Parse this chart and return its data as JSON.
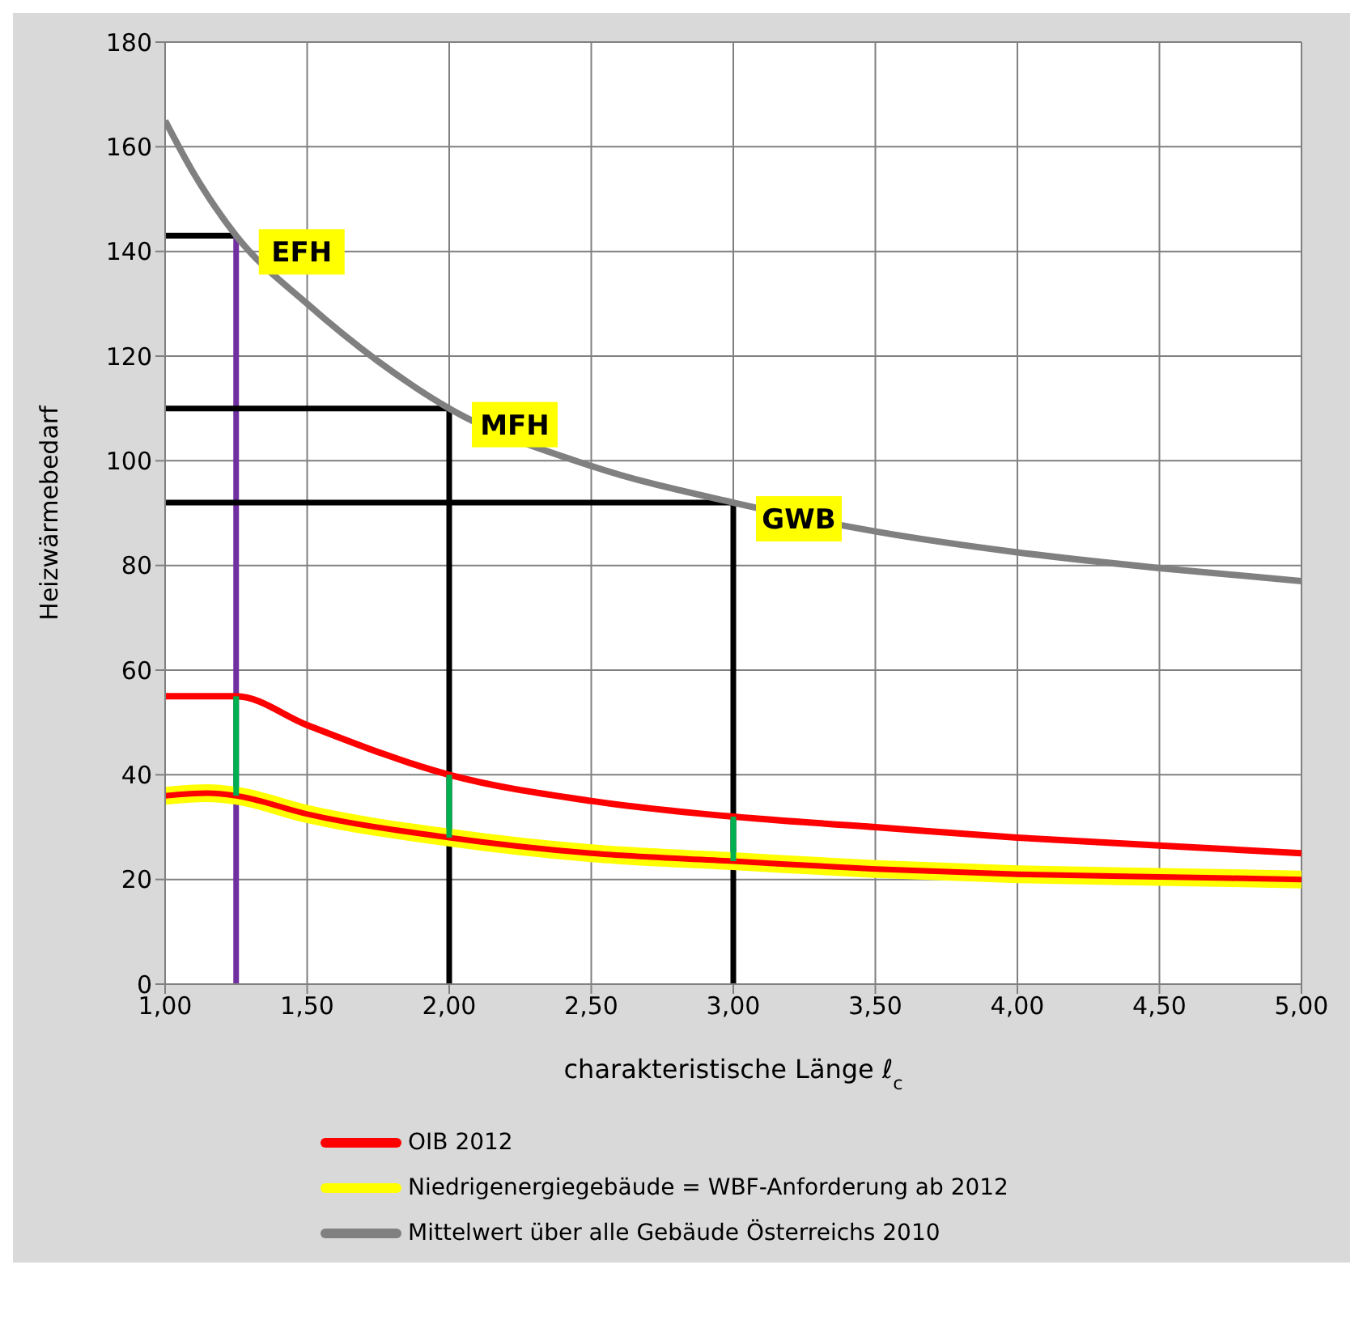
{
  "chart_data": {
    "type": "line",
    "ylabel": "Heizwärmebedarf",
    "xlabel": "charakteristische Länge ℓ$_{c}$",
    "xlim": [
      1,
      5
    ],
    "xticks": [
      {
        "value": 1,
        "label": "1,00"
      },
      {
        "value": 1.5,
        "label": "1,50"
      },
      {
        "value": 2,
        "label": "2,00"
      },
      {
        "value": 2.5,
        "label": "2,50"
      },
      {
        "value": 3,
        "label": "3,00"
      },
      {
        "value": 3.5,
        "label": "3,50"
      },
      {
        "value": 4,
        "label": "4,00"
      },
      {
        "value": 4.5,
        "label": "4,50"
      },
      {
        "value": 5,
        "label": "5,00"
      }
    ],
    "ylim": [
      0,
      180
    ],
    "yticks": [
      0,
      20,
      40,
      60,
      80,
      100,
      120,
      140,
      160,
      180
    ],
    "grid": true,
    "legend": "bottom",
    "series": [
      {
        "color": "#000000",
        "x": [
          1,
          1.25
        ],
        "values": [
          143,
          143
        ]
      },
      {
        "color": "#7030a0",
        "x": [
          1.25,
          1.25
        ],
        "values": [
          143,
          0
        ]
      },
      {
        "color": "#000000",
        "x": [
          1,
          2,
          2
        ],
        "values": [
          110,
          110,
          0
        ]
      },
      {
        "color": "#000000",
        "x": [
          1,
          3,
          3
        ],
        "values": [
          92,
          92,
          0
        ]
      },
      {
        "name": "OIB 2012",
        "color": "#ff0000",
        "x": [
          1,
          1.25,
          1.5,
          2,
          2.5,
          3,
          3.5,
          4,
          4.5,
          5
        ],
        "values": [
          55,
          55,
          49.5,
          40,
          35,
          32,
          30,
          28,
          26.5,
          25
        ]
      },
      {
        "name": "Niedrigenergiegebäude = WBF-Anforderung ab 2012",
        "color": "#ffff00",
        "x": [
          1,
          1.15,
          1.25,
          1.5,
          2,
          2.5,
          3,
          3.5,
          4,
          4.5,
          5
        ],
        "values": [
          36,
          36.5,
          36,
          32.5,
          28,
          25,
          23.5,
          22,
          21,
          20.5,
          20
        ]
      },
      {
        "color": "#ff0000",
        "x": [
          1,
          1.15,
          1.25,
          1.5,
          2,
          2.5,
          3,
          3.5,
          4,
          4.5,
          5
        ],
        "values": [
          36,
          36.5,
          36,
          32.5,
          28,
          25,
          23.5,
          22,
          21,
          20.5,
          20
        ]
      },
      {
        "name": "Mittelwert über alle Gebäude Österreichs 2010",
        "color": "#808080",
        "x": [
          1,
          1.1,
          1.25,
          1.5,
          1.75,
          2,
          2.5,
          3,
          3.5,
          4,
          4.5,
          5
        ],
        "values": [
          165,
          155,
          143,
          130,
          119,
          110,
          99,
          92,
          86.5,
          82.5,
          79.5,
          77
        ]
      },
      {
        "color": "#00b050",
        "x": [
          1.25,
          1.25
        ],
        "values": [
          36,
          55
        ]
      },
      {
        "color": "#00b050",
        "x": [
          2,
          2
        ],
        "values": [
          28,
          40
        ]
      },
      {
        "color": "#00b050",
        "x": [
          3,
          3
        ],
        "values": [
          23.5,
          32
        ]
      }
    ],
    "annotations": [
      {
        "text": "EFH",
        "x": 1.25,
        "y": 143
      },
      {
        "text": "MFH",
        "x": 2,
        "y": 110
      },
      {
        "text": "GWB",
        "x": 3,
        "y": 92
      }
    ]
  }
}
